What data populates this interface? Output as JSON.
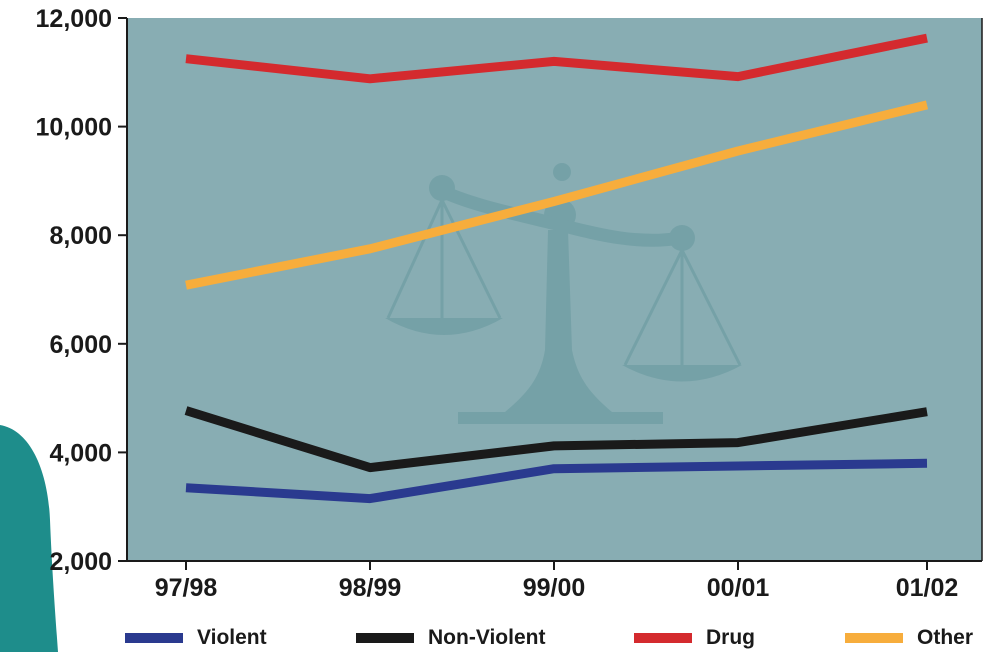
{
  "chart_data": {
    "type": "line",
    "categories": [
      "97/98",
      "98/99",
      "99/00",
      "00/01",
      "01/02"
    ],
    "y_ticks": [
      "12,000",
      "10,000",
      "8,000",
      "6,000",
      "4,000",
      "2,000"
    ],
    "ylim": [
      2000,
      12000
    ],
    "series": [
      {
        "name": "Violent",
        "color": "#2a3a8f",
        "values": [
          3350,
          3150,
          3700,
          3750,
          3800
        ]
      },
      {
        "name": "Non-Violent",
        "color": "#1a1a1a",
        "values": [
          4770,
          3720,
          4120,
          4180,
          4750
        ]
      },
      {
        "name": "Drug",
        "color": "#d42a2e",
        "values": [
          11250,
          10880,
          11200,
          10920,
          11630
        ]
      },
      {
        "name": "Other",
        "color": "#f7ad3c",
        "values": [
          7080,
          7750,
          8620,
          9550,
          10400
        ]
      }
    ],
    "plot_background": "#88adb3",
    "background_image": "scales-of-justice",
    "grid": false,
    "legend_position": "bottom"
  }
}
